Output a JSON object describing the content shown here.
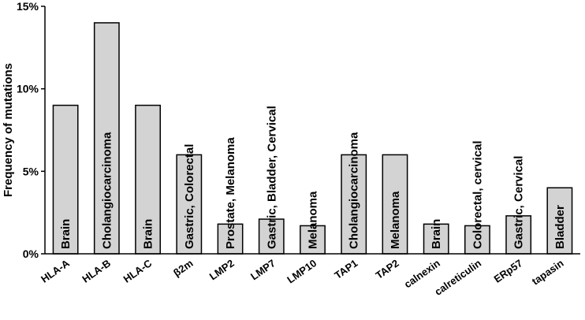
{
  "chart_data": {
    "type": "bar",
    "title": "",
    "xlabel": "",
    "ylabel": "Frequency of mutations",
    "ylim": [
      0,
      15
    ],
    "yticks": [
      0,
      5,
      10,
      15
    ],
    "ytick_labels": [
      "0%",
      "5%",
      "10%",
      "15%"
    ],
    "grid": false,
    "bar_color": "#d3d3d3",
    "categories": [
      "HLA-A",
      "HLA-B",
      "HLA-C",
      "β2m",
      "LMP2",
      "LMP7",
      "LMP10",
      "TAP1",
      "TAP2",
      "calnexin",
      "calreticulin",
      "ERp57",
      "tapasin"
    ],
    "values": [
      9,
      14,
      9,
      6,
      1.8,
      2.1,
      1.7,
      6,
      6,
      1.8,
      1.7,
      2.3,
      4
    ],
    "bar_labels": [
      "Brain",
      "Cholangiocarcinoma",
      "Brain",
      "Gastric, Colorectal",
      "Prostate, Melanoma",
      "Gastric, Bladder, Cervical",
      "Melanoma",
      "Cholangiocarcinoma",
      "Melanoma",
      "Brain",
      "Colorectal, cervical",
      "Gastric, Cervical",
      "Bladder"
    ]
  }
}
